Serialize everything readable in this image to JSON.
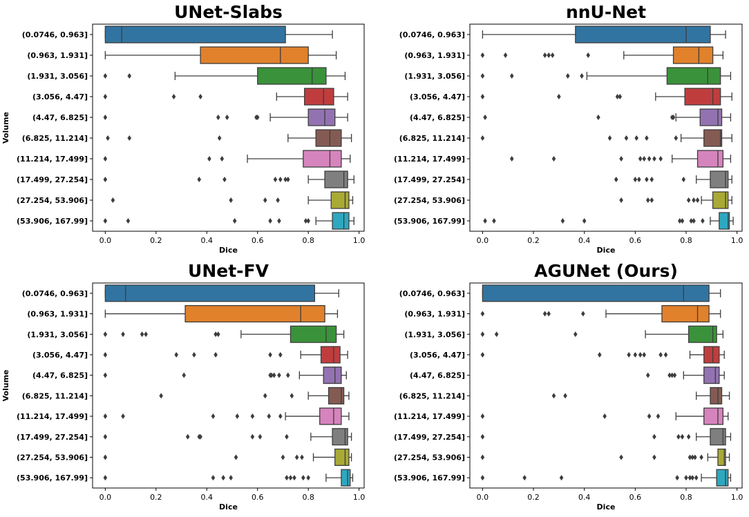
{
  "palette": [
    "#3274a1",
    "#e1812c",
    "#3a923a",
    "#c03d3e",
    "#9372b2",
    "#845b53",
    "#d684bd",
    "#7f7f7f",
    "#a9aa35",
    "#2ea8bf"
  ],
  "chart_data": [
    {
      "type": "box",
      "title": "UNet-Slabs",
      "xlabel": "Dice",
      "ylabel": "Volume",
      "xlim": [
        -0.05,
        1.02
      ],
      "xticks": [
        "0.0",
        "0.2",
        "0.4",
        "0.6",
        "0.8",
        "1.0"
      ],
      "categories": [
        "(0.0746, 0.963]",
        "(0.963, 1.931]",
        "(1.931, 3.056]",
        "(3.056, 4.47]",
        "(4.47, 6.825]",
        "(6.825, 11.214]",
        "(11.214, 17.499]",
        "(17.499, 27.254]",
        "(27.254, 53.906]",
        "(53.906, 167.99]"
      ],
      "boxes": [
        {
          "wlo": 0.0,
          "q1": 0.0,
          "med": 0.065,
          "q3": 0.71,
          "whi": 0.895,
          "out": []
        },
        {
          "wlo": 0.0,
          "q1": 0.375,
          "med": 0.69,
          "q3": 0.8,
          "whi": 0.91,
          "out": []
        },
        {
          "wlo": 0.275,
          "q1": 0.6,
          "med": 0.815,
          "q3": 0.87,
          "whi": 0.945,
          "out": [
            0.0,
            0.095
          ]
        },
        {
          "wlo": 0.675,
          "q1": 0.785,
          "med": 0.86,
          "q3": 0.9,
          "whi": 0.955,
          "out": [
            0.0,
            0.27,
            0.375
          ]
        },
        {
          "wlo": 0.65,
          "q1": 0.8,
          "med": 0.865,
          "q3": 0.905,
          "whi": 0.955,
          "out": [
            0.0,
            0.445,
            0.48,
            0.595,
            0.6
          ]
        },
        {
          "wlo": 0.72,
          "q1": 0.83,
          "med": 0.885,
          "q3": 0.93,
          "whi": 0.97,
          "out": [
            0.01,
            0.095,
            0.45
          ]
        },
        {
          "wlo": 0.56,
          "q1": 0.78,
          "med": 0.885,
          "q3": 0.93,
          "whi": 0.965,
          "out": [
            0.0,
            0.41,
            0.46
          ]
        },
        {
          "wlo": 0.8,
          "q1": 0.865,
          "med": 0.94,
          "q3": 0.955,
          "whi": 0.98,
          "out": [
            0.0,
            0.37,
            0.47,
            0.67,
            0.69,
            0.71,
            0.72
          ]
        },
        {
          "wlo": 0.8,
          "q1": 0.89,
          "med": 0.945,
          "q3": 0.96,
          "whi": 0.975,
          "out": [
            0.03,
            0.495,
            0.63,
            0.68
          ]
        },
        {
          "wlo": 0.83,
          "q1": 0.895,
          "med": 0.94,
          "q3": 0.96,
          "whi": 0.98,
          "out": [
            0.0,
            0.09,
            0.51,
            0.65,
            0.685,
            0.79,
            0.8
          ]
        }
      ]
    },
    {
      "type": "box",
      "title": "nnU-Net",
      "xlabel": "Dice",
      "ylabel": "",
      "xlim": [
        -0.05,
        1.02
      ],
      "xticks": [
        "0.0",
        "0.2",
        "0.4",
        "0.6",
        "0.8",
        "1.0"
      ],
      "categories": [
        "(0.0746, 0.963]",
        "(0.963, 1.931]",
        "(1.931, 3.056]",
        "(3.056, 4.47]",
        "(4.47, 6.825]",
        "(6.825, 11.214]",
        "(11.214, 17.499]",
        "(17.499, 27.254]",
        "(27.254, 53.906]",
        "(53.906, 167.99]"
      ],
      "boxes": [
        {
          "wlo": 0.0,
          "q1": 0.365,
          "med": 0.8,
          "q3": 0.895,
          "whi": 0.955,
          "out": []
        },
        {
          "wlo": 0.555,
          "q1": 0.75,
          "med": 0.85,
          "q3": 0.905,
          "whi": 0.945,
          "out": [
            0.0,
            0.09,
            0.245,
            0.26,
            0.275,
            0.415
          ]
        },
        {
          "wlo": 0.41,
          "q1": 0.725,
          "med": 0.885,
          "q3": 0.935,
          "whi": 0.975,
          "out": [
            0.0,
            0.115,
            0.335,
            0.39
          ]
        },
        {
          "wlo": 0.68,
          "q1": 0.795,
          "med": 0.905,
          "q3": 0.935,
          "whi": 0.98,
          "out": [
            0.0,
            0.3,
            0.53,
            0.54
          ]
        },
        {
          "wlo": 0.76,
          "q1": 0.855,
          "med": 0.925,
          "q3": 0.94,
          "whi": 0.975,
          "out": [
            0.01,
            0.455,
            0.745,
            0.75
          ]
        },
        {
          "wlo": 0.78,
          "q1": 0.87,
          "med": 0.935,
          "q3": 0.94,
          "whi": 0.98,
          "out": [
            0.0,
            0.5,
            0.565,
            0.605,
            0.645,
            0.76
          ]
        },
        {
          "wlo": 0.745,
          "q1": 0.845,
          "med": 0.925,
          "q3": 0.945,
          "whi": 0.975,
          "out": [
            0.115,
            0.28,
            0.545,
            0.62,
            0.635,
            0.655,
            0.675,
            0.7
          ]
        },
        {
          "wlo": 0.84,
          "q1": 0.895,
          "med": 0.955,
          "q3": 0.965,
          "whi": 0.98,
          "out": [
            0.525,
            0.6,
            0.615,
            0.645,
            0.665,
            0.79
          ]
        },
        {
          "wlo": 0.86,
          "q1": 0.905,
          "med": 0.955,
          "q3": 0.965,
          "whi": 0.98,
          "out": [
            0.545,
            0.65,
            0.665,
            0.81,
            0.83,
            0.845
          ]
        },
        {
          "wlo": 0.895,
          "q1": 0.93,
          "med": 0.965,
          "q3": 0.97,
          "whi": 0.985,
          "out": [
            0.01,
            0.045,
            0.315,
            0.4,
            0.775,
            0.785,
            0.82,
            0.83,
            0.865
          ]
        }
      ]
    },
    {
      "type": "box",
      "title": "UNet-FV",
      "xlabel": "Dice",
      "ylabel": "Volume",
      "xlim": [
        -0.05,
        1.02
      ],
      "xticks": [
        "0.0",
        "0.2",
        "0.4",
        "0.6",
        "0.8",
        "1.0"
      ],
      "categories": [
        "(0.0746, 0.963]",
        "(0.963, 1.931]",
        "(1.931, 3.056]",
        "(3.056, 4.47]",
        "(4.47, 6.825]",
        "(6.825, 11.214]",
        "(11.214, 17.499]",
        "(17.499, 27.254]",
        "(27.254, 53.906]",
        "(53.906, 167.99]"
      ],
      "boxes": [
        {
          "wlo": 0.0,
          "q1": 0.0,
          "med": 0.08,
          "q3": 0.825,
          "whi": 0.92,
          "out": []
        },
        {
          "wlo": 0.0,
          "q1": 0.315,
          "med": 0.77,
          "q3": 0.865,
          "whi": 0.915,
          "out": []
        },
        {
          "wlo": 0.535,
          "q1": 0.73,
          "med": 0.87,
          "q3": 0.91,
          "whi": 0.94,
          "out": [
            0.0,
            0.07,
            0.145,
            0.16,
            0.435,
            0.445
          ]
        },
        {
          "wlo": 0.77,
          "q1": 0.85,
          "med": 0.9,
          "q3": 0.925,
          "whi": 0.955,
          "out": [
            0.0,
            0.28,
            0.35,
            0.435,
            0.65,
            0.69
          ]
        },
        {
          "wlo": 0.765,
          "q1": 0.86,
          "med": 0.905,
          "q3": 0.93,
          "whi": 0.95,
          "out": [
            0.0,
            0.31,
            0.65,
            0.655,
            0.665,
            0.685,
            0.72
          ]
        },
        {
          "wlo": 0.8,
          "q1": 0.88,
          "med": 0.93,
          "q3": 0.94,
          "whi": 0.96,
          "out": [
            0.22,
            0.63,
            0.735
          ]
        },
        {
          "wlo": 0.71,
          "q1": 0.845,
          "med": 0.9,
          "q3": 0.93,
          "whi": 0.96,
          "out": [
            0.0,
            0.07,
            0.425,
            0.52,
            0.58,
            0.645,
            0.69
          ]
        },
        {
          "wlo": 0.81,
          "q1": 0.895,
          "med": 0.945,
          "q3": 0.955,
          "whi": 0.97,
          "out": [
            0.0,
            0.325,
            0.37,
            0.375,
            0.58,
            0.61,
            0.715
          ]
        },
        {
          "wlo": 0.82,
          "q1": 0.905,
          "med": 0.945,
          "q3": 0.96,
          "whi": 0.97,
          "out": [
            0.0,
            0.515,
            0.7,
            0.755,
            0.775
          ]
        },
        {
          "wlo": 0.87,
          "q1": 0.93,
          "med": 0.955,
          "q3": 0.965,
          "whi": 0.975,
          "out": [
            0.0,
            0.425,
            0.465,
            0.495,
            0.715,
            0.73,
            0.745,
            0.78,
            0.8
          ]
        }
      ]
    },
    {
      "type": "box",
      "title": "AGUNet (Ours)",
      "xlabel": "Dice",
      "ylabel": "",
      "xlim": [
        -0.05,
        1.02
      ],
      "xticks": [
        "0.0",
        "0.2",
        "0.4",
        "0.6",
        "0.8",
        "1.0"
      ],
      "categories": [
        "(0.0746, 0.963]",
        "(0.963, 1.931]",
        "(1.931, 3.056]",
        "(3.056, 4.47]",
        "(4.47, 6.825]",
        "(6.825, 11.214]",
        "(11.214, 17.499]",
        "(17.499, 27.254]",
        "(27.254, 53.906]",
        "(53.906, 167.99]"
      ],
      "boxes": [
        {
          "wlo": 0.0,
          "q1": 0.0,
          "med": 0.79,
          "q3": 0.89,
          "whi": 0.935,
          "out": []
        },
        {
          "wlo": 0.485,
          "q1": 0.705,
          "med": 0.845,
          "q3": 0.89,
          "whi": 0.935,
          "out": [
            0.0,
            0.245,
            0.26,
            0.395
          ]
        },
        {
          "wlo": 0.64,
          "q1": 0.81,
          "med": 0.905,
          "q3": 0.92,
          "whi": 0.945,
          "out": [
            0.0,
            0.055,
            0.365
          ]
        },
        {
          "wlo": 0.815,
          "q1": 0.87,
          "med": 0.905,
          "q3": 0.93,
          "whi": 0.95,
          "out": [
            0.0,
            0.46,
            0.575,
            0.6,
            0.62,
            0.635,
            0.7,
            0.72
          ]
        },
        {
          "wlo": 0.79,
          "q1": 0.87,
          "med": 0.915,
          "q3": 0.93,
          "whi": 0.95,
          "out": [
            0.65,
            0.735,
            0.745,
            0.755
          ]
        },
        {
          "wlo": 0.84,
          "q1": 0.895,
          "med": 0.925,
          "q3": 0.94,
          "whi": 0.97,
          "out": [
            0.28,
            0.325
          ]
        },
        {
          "wlo": 0.76,
          "q1": 0.87,
          "med": 0.925,
          "q3": 0.945,
          "whi": 0.965,
          "out": [
            0.0,
            0.48,
            0.655,
            0.69
          ]
        },
        {
          "wlo": 0.84,
          "q1": 0.895,
          "med": 0.945,
          "q3": 0.955,
          "whi": 0.975,
          "out": [
            0.0,
            0.675,
            0.77,
            0.785,
            0.81
          ]
        },
        {
          "wlo": 0.885,
          "q1": 0.925,
          "med": 0.95,
          "q3": 0.955,
          "whi": 0.97,
          "out": [
            0.0,
            0.545,
            0.675,
            0.815,
            0.825,
            0.835,
            0.86
          ]
        },
        {
          "wlo": 0.86,
          "q1": 0.92,
          "med": 0.955,
          "q3": 0.965,
          "whi": 0.975,
          "out": [
            0.0,
            0.165,
            0.31,
            0.765,
            0.8,
            0.815,
            0.825,
            0.84
          ]
        }
      ]
    }
  ]
}
